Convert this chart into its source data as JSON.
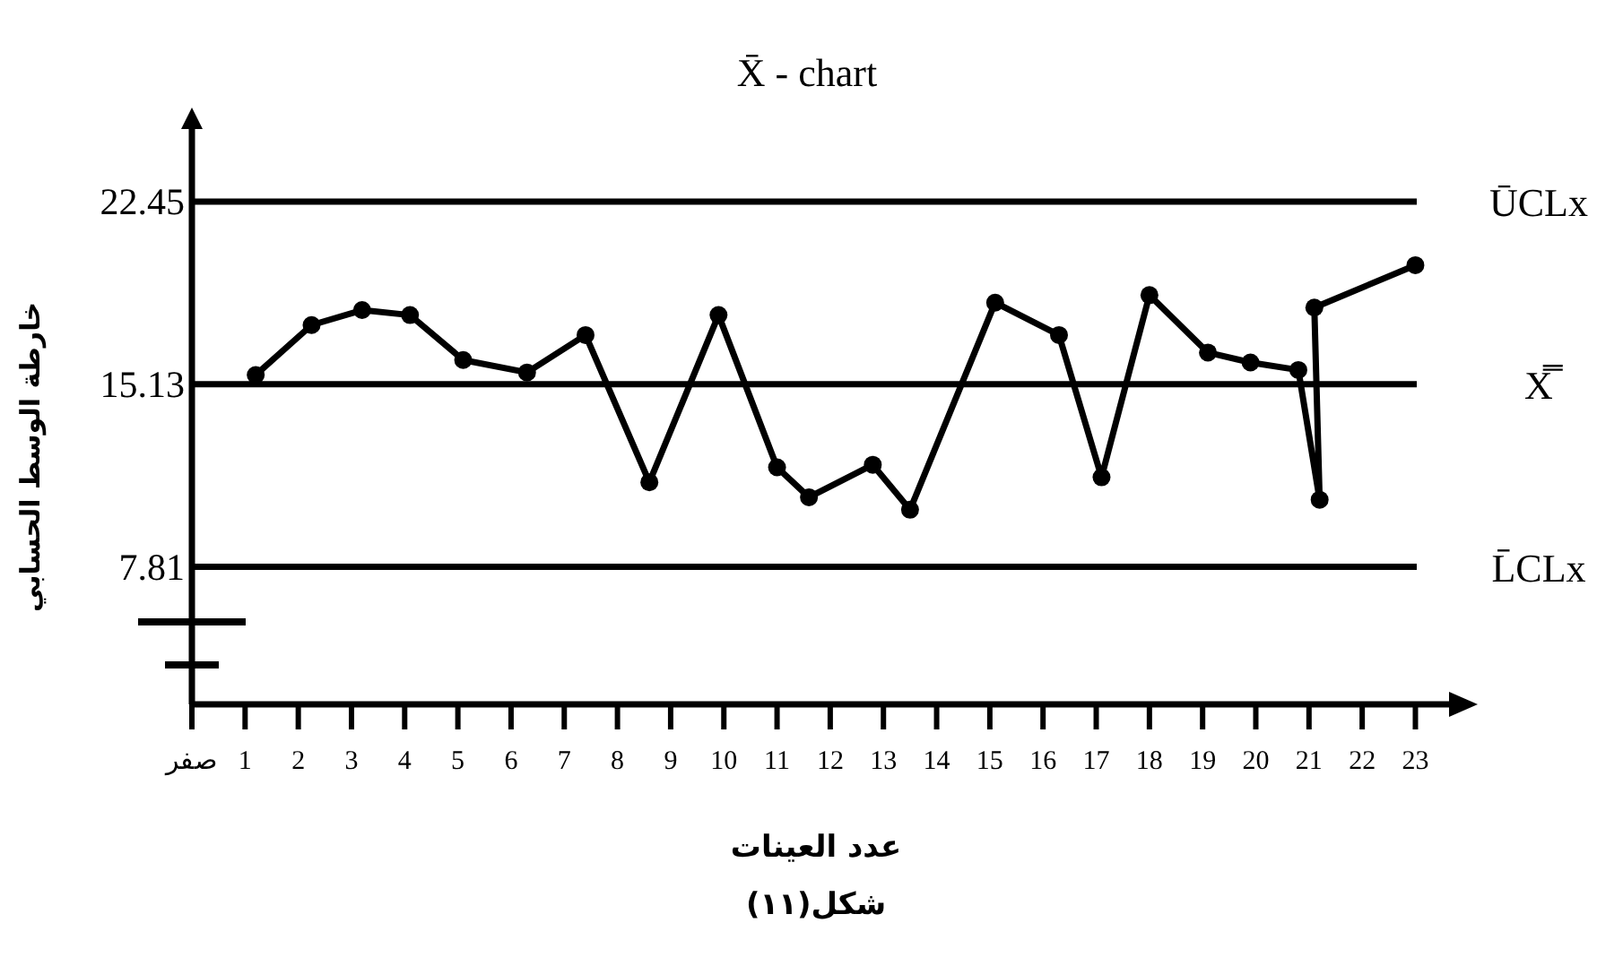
{
  "chart_data": {
    "type": "line",
    "title": "X̄ - chart",
    "xlabel": "عدد العينات",
    "ylabel": "خارطة الوسط الحسابي",
    "annotations": [
      "شكل(١١)"
    ],
    "x": [
      1.2,
      2.25,
      3.2,
      4.1,
      5.1,
      6.3,
      7.4,
      8.6,
      9.9,
      11.0,
      11.6,
      12.8,
      13.5,
      15.1,
      16.3,
      17.1,
      18.0,
      19.1,
      19.9,
      20.8,
      21.2,
      21.1,
      23.0
    ],
    "series": [
      {
        "color": "#000000",
        "values": [
          15.5,
          17.5,
          18.1,
          17.9,
          16.1,
          15.6,
          17.1,
          11.2,
          17.9,
          11.8,
          10.6,
          11.9,
          10.1,
          18.4,
          17.1,
          11.4,
          18.7,
          16.4,
          16.0,
          15.7,
          10.5,
          18.2,
          19.9
        ]
      }
    ],
    "xlim": [
      0,
      23.7
    ],
    "xticks": [
      {
        "value": 0,
        "label": "صفر"
      },
      1,
      2,
      3,
      4,
      5,
      6,
      7,
      8,
      9,
      10,
      11,
      12,
      13,
      14,
      15,
      16,
      17,
      18,
      19,
      20,
      21,
      22,
      23
    ],
    "ylim": [
      2.3,
      25.5
    ],
    "yticks": [
      22.45,
      15.13,
      7.81
    ],
    "ref_lines": [
      {
        "axis": "y",
        "value": 22.45,
        "label": "ŪCLx"
      },
      {
        "axis": "y",
        "value": 15.13,
        "label": "X̿"
      },
      {
        "axis": "y",
        "value": 7.81,
        "label": "L̄CLx"
      }
    ],
    "marker": "circle",
    "line_style": "solid",
    "grid": false
  }
}
